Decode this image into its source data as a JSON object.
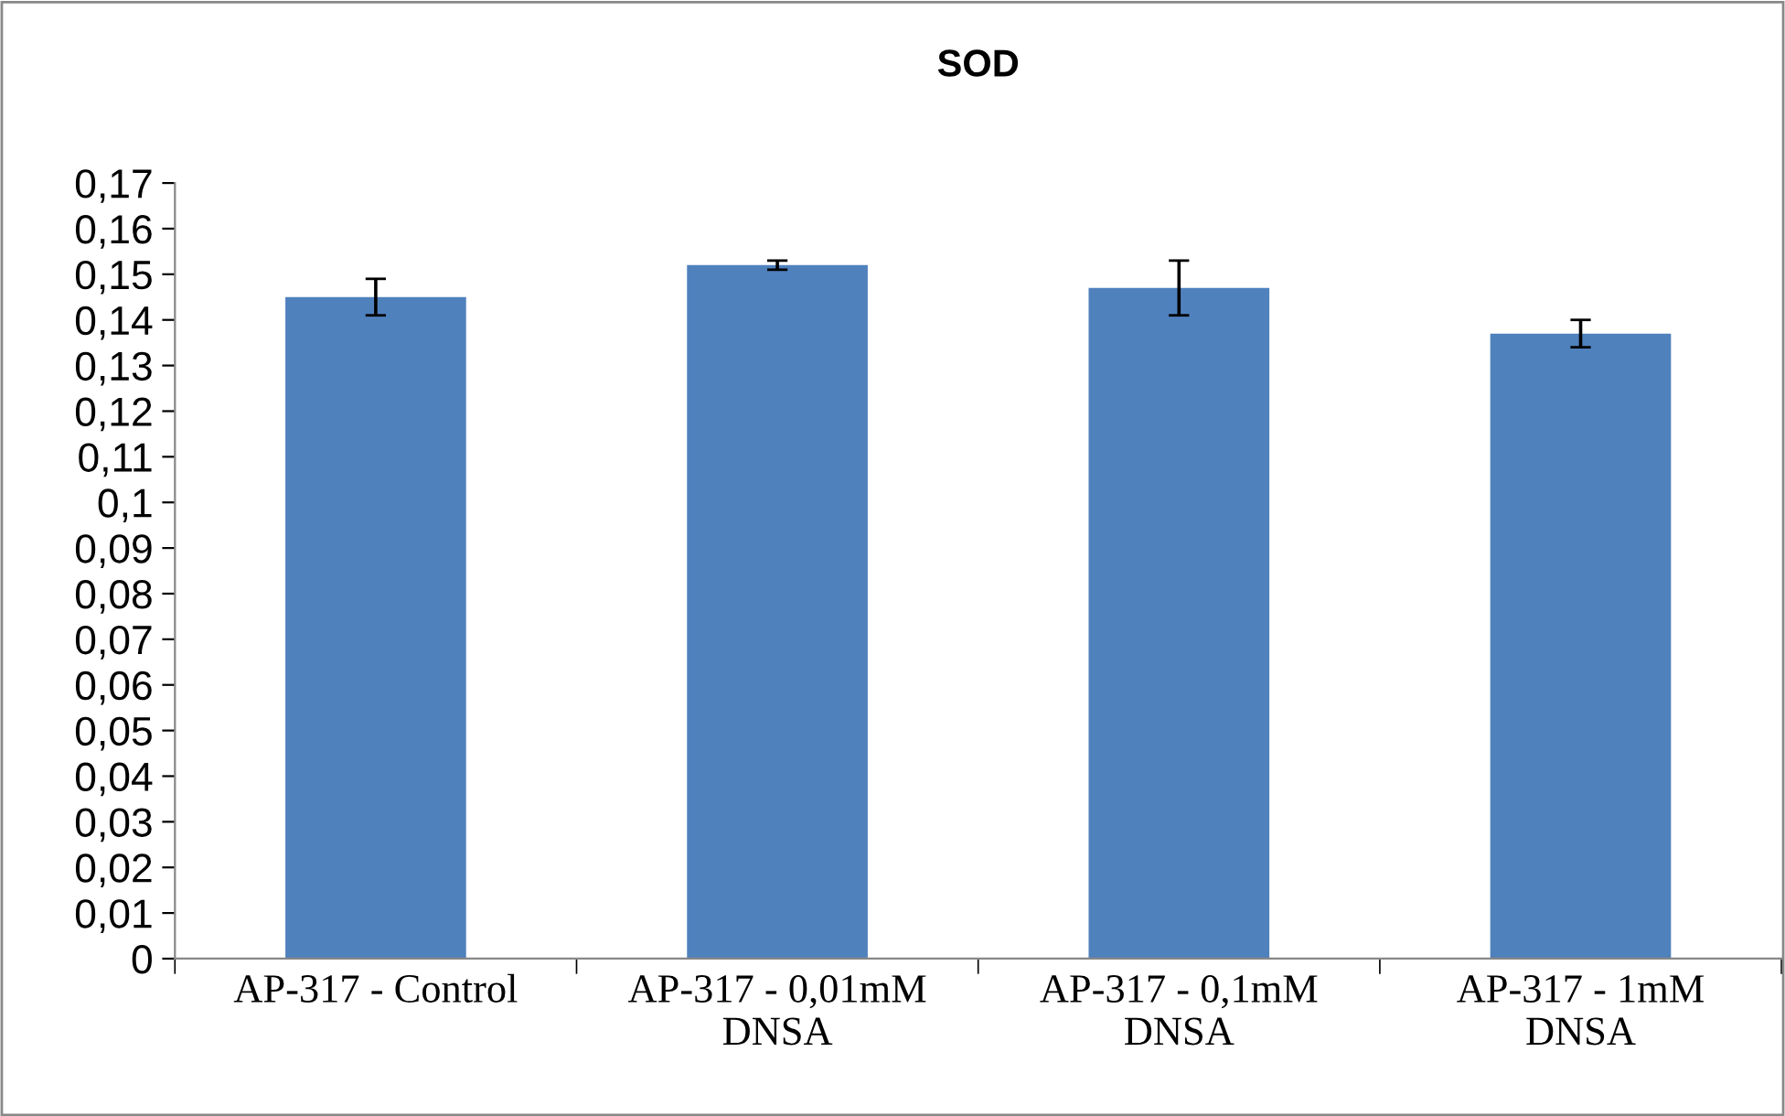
{
  "chart_data": {
    "type": "bar",
    "title": "SOD",
    "categories": [
      "AP-317 - Control",
      "AP-317 - 0,01mM\nDNSA",
      "AP-317 - 0,1mM\nDNSA",
      "AP-317 - 1mM\nDNSA"
    ],
    "values": [
      0.145,
      0.152,
      0.147,
      0.137
    ],
    "errors": [
      0.004,
      0.001,
      0.006,
      0.003
    ],
    "color": "#4f81bd",
    "ylim": [
      0,
      0.17
    ],
    "yticks": [
      0,
      {
        "value": 0.01,
        "label": "0,01"
      },
      {
        "value": 0.02,
        "label": "0,02"
      },
      {
        "value": 0.03,
        "label": "0,03"
      },
      {
        "value": 0.04,
        "label": "0,04"
      },
      {
        "value": 0.05,
        "label": "0,05"
      },
      {
        "value": 0.06,
        "label": "0,06"
      },
      {
        "value": 0.07,
        "label": "0,07"
      },
      {
        "value": 0.08,
        "label": "0,08"
      },
      {
        "value": 0.09,
        "label": "0,09"
      },
      {
        "value": 0.1,
        "label": "0,1"
      },
      {
        "value": 0.11,
        "label": "0,11"
      },
      {
        "value": 0.12,
        "label": "0,12"
      },
      {
        "value": 0.13,
        "label": "0,13"
      },
      {
        "value": 0.14,
        "label": "0,14"
      },
      {
        "value": 0.15,
        "label": "0,15"
      },
      {
        "value": 0.16,
        "label": "0,16"
      },
      {
        "value": 0.17,
        "label": "0,17"
      }
    ],
    "grid": false,
    "legend": false
  }
}
